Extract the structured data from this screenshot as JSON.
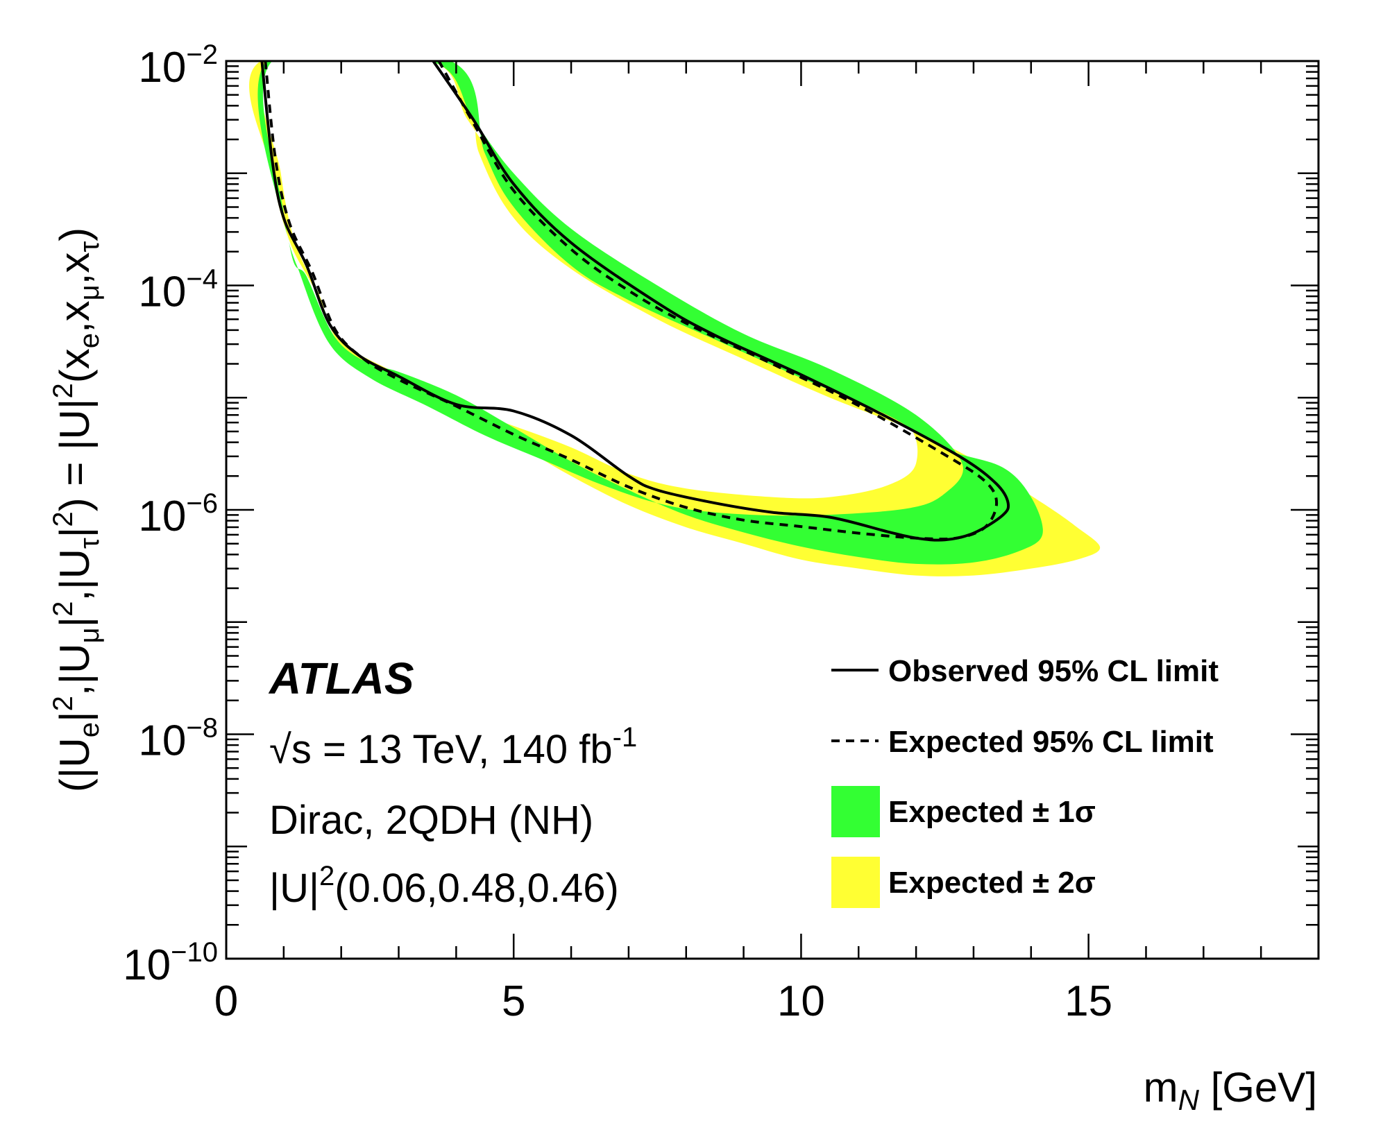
{
  "chart_data": {
    "type": "area",
    "experiment": "ATLAS",
    "energy_line": "√s = 13 TeV, 140 fb-1",
    "info_lines": [
      "Dirac, 2QDH (NH)"
    ],
    "coupling_label": "|U|2(0.06,0.48,0.46)",
    "xlabel": "m_N [GeV]",
    "ylabel": "(|U_e|^2,|U_μ|^2,|U_τ|^2) = |U|^2(x_e,x_μ,x_τ)",
    "xlim": [
      0,
      19
    ],
    "ylim": [
      1e-10,
      0.01
    ],
    "yscale": "log",
    "x_ticks": [
      0,
      5,
      10,
      15
    ],
    "x_tick_labels": [
      "0",
      "5",
      "10",
      "15"
    ],
    "y_ticks": [
      -10,
      -8,
      -6,
      -4,
      -2
    ],
    "y_tick_labels": [
      "10−10",
      "10−8",
      "10−6",
      "10−4",
      "10−2"
    ],
    "legend": {
      "placement": "bottom-right",
      "entries": [
        {
          "label": "Observed 95% CL limit",
          "style": "solid-line"
        },
        {
          "label": "Expected 95% CL limit",
          "style": "dashed-line"
        },
        {
          "label": "Expected ± 1σ",
          "style": "fill",
          "color": "#33ff33"
        },
        {
          "label": "Expected ± 2σ",
          "style": "fill",
          "color": "#ffff33"
        }
      ]
    },
    "colors": {
      "band_1sigma": "#33ff33",
      "band_2sigma": "#ffff33",
      "line": "#000000"
    },
    "band_2sigma": {
      "lower_edge": [
        [
          0.6,
          0.01
        ],
        [
          0.8,
          0.001
        ],
        [
          1.1,
          0.00025
        ],
        [
          1.5,
          0.0001
        ],
        [
          2.0,
          3.2e-05
        ],
        [
          3.0,
          1.6e-05
        ],
        [
          4.0,
          8e-06
        ],
        [
          5.0,
          4e-06
        ],
        [
          6.0,
          2e-06
        ],
        [
          7.0,
          1.1e-06
        ],
        [
          8.0,
          7e-07
        ],
        [
          9.0,
          5e-07
        ],
        [
          10.0,
          3.6e-07
        ],
        [
          11.0,
          3e-07
        ],
        [
          12.0,
          2.6e-07
        ],
        [
          13.0,
          2.6e-07
        ],
        [
          14.0,
          3e-07
        ],
        [
          14.8,
          3.6e-07
        ],
        [
          15.2,
          4.6e-07
        ]
      ],
      "upper_edge": [
        [
          15.2,
          4.6e-07
        ],
        [
          14.8,
          7e-07
        ],
        [
          14.2,
          1.15e-06
        ],
        [
          13.0,
          2.8e-06
        ],
        [
          12.0,
          5e-06
        ],
        [
          10.5,
          1e-05
        ],
        [
          9.0,
          2.2e-05
        ],
        [
          7.5,
          5e-05
        ],
        [
          6.0,
          0.00014
        ],
        [
          5.0,
          0.0004
        ],
        [
          4.4,
          0.0015
        ],
        [
          3.9,
          0.01
        ]
      ],
      "hole_edge": [
        [
          12.0,
          2.6e-06
        ],
        [
          11.5,
          1.65e-06
        ],
        [
          10.5,
          1.3e-06
        ],
        [
          9.5,
          1.3e-06
        ],
        [
          8.0,
          1.55e-06
        ],
        [
          7.0,
          2.1e-06
        ],
        [
          6.0,
          3.6e-06
        ],
        [
          5.0,
          5.6e-06
        ],
        [
          4.0,
          8.4e-06
        ],
        [
          3.0,
          1.45e-05
        ],
        [
          2.0,
          2.9e-05
        ],
        [
          1.6,
          8.7e-05
        ],
        [
          1.2,
          0.00024
        ],
        [
          0.95,
          0.001
        ],
        [
          0.75,
          0.01
        ],
        [
          3.55,
          0.01
        ],
        [
          4.2,
          0.003
        ],
        [
          5.0,
          0.0008
        ],
        [
          6.0,
          0.00025
        ],
        [
          7.5,
          8e-05
        ],
        [
          9.0,
          3.2e-05
        ],
        [
          10.5,
          1.5e-05
        ],
        [
          11.8,
          6.3e-06
        ]
      ]
    },
    "band_1sigma": {
      "outer_lower": [
        [
          0.7,
          0.01
        ],
        [
          1.1,
          0.00023
        ],
        [
          1.4,
          0.00012
        ],
        [
          1.9,
          3.4e-05
        ],
        [
          2.5,
          2e-05
        ],
        [
          3.0,
          1.7e-05
        ],
        [
          4.0,
          1.05e-05
        ],
        [
          5.0,
          5.4e-06
        ],
        [
          6.0,
          2.7e-06
        ],
        [
          7.0,
          1.5e-06
        ],
        [
          8.0,
          9e-07
        ],
        [
          9.0,
          6.3e-07
        ],
        [
          10.0,
          4.7e-07
        ],
        [
          11.0,
          3.8e-07
        ],
        [
          12.0,
          3.3e-07
        ],
        [
          13.0,
          3.4e-07
        ],
        [
          13.8,
          4.3e-07
        ],
        [
          14.2,
          6.1e-07
        ]
      ],
      "outer_upper": [
        [
          14.2,
          6.1e-07
        ],
        [
          14.0,
          1.3e-06
        ],
        [
          13.5,
          2.4e-06
        ],
        [
          12.5,
          3.5e-06
        ],
        [
          11.5,
          7e-06
        ],
        [
          10.0,
          1.5e-05
        ],
        [
          8.5,
          3.3e-05
        ],
        [
          7.0,
          7.4e-05
        ],
        [
          6.0,
          0.00015
        ],
        [
          5.0,
          0.0005
        ],
        [
          4.5,
          0.0015
        ],
        [
          3.9,
          0.01
        ]
      ],
      "inner": [
        [
          12.8,
          2.6e-06
        ],
        [
          12.5,
          1.4e-06
        ],
        [
          11.8,
          1.02e-06
        ],
        [
          10.0,
          8.9e-07
        ],
        [
          8.5,
          9.5e-07
        ],
        [
          7.5,
          1.15e-06
        ],
        [
          6.5,
          1.7e-06
        ],
        [
          5.5,
          2.8e-06
        ],
        [
          4.5,
          4.6e-06
        ],
        [
          3.5,
          8.4e-06
        ],
        [
          2.5,
          1.5e-05
        ],
        [
          1.8,
          3e-05
        ],
        [
          1.3,
          0.00012
        ],
        [
          1.0,
          0.00044
        ],
        [
          0.8,
          0.01
        ],
        [
          3.55,
          0.01
        ],
        [
          4.3,
          0.003
        ],
        [
          5.0,
          0.001
        ],
        [
          6.0,
          0.00032
        ],
        [
          7.5,
          0.0001
        ],
        [
          9.0,
          3.7e-05
        ],
        [
          10.5,
          1.8e-05
        ],
        [
          12.0,
          7e-06
        ]
      ]
    },
    "series": [
      {
        "name": "Observed 95% CL limit",
        "style": "solid",
        "points": [
          [
            0.62,
            0.01
          ],
          [
            0.8,
            0.0013
          ],
          [
            1.0,
            0.0004
          ],
          [
            1.4,
            0.00015
          ],
          [
            1.8,
            4.5e-05
          ],
          [
            2.3,
            2.4e-05
          ],
          [
            3.0,
            1.55e-05
          ],
          [
            4.0,
            8.7e-06
          ],
          [
            5.0,
            7.6e-06
          ],
          [
            6.0,
            4.6e-06
          ],
          [
            7.0,
            2e-06
          ],
          [
            7.5,
            1.5e-06
          ],
          [
            8.5,
            1.15e-06
          ],
          [
            9.5,
            9.5e-07
          ],
          [
            10.5,
            8.6e-07
          ],
          [
            11.5,
            6.4e-07
          ],
          [
            12.0,
            5.6e-07
          ],
          [
            12.5,
            5.4e-07
          ],
          [
            13.0,
            6.2e-07
          ],
          [
            13.5,
            8.9e-07
          ],
          [
            13.6,
            1.15e-06
          ],
          [
            13.4,
            1.7e-06
          ],
          [
            12.8,
            2.9e-06
          ],
          [
            11.5,
            6.7e-06
          ],
          [
            10.0,
            1.6e-05
          ],
          [
            8.5,
            3.6e-05
          ],
          [
            7.5,
            7e-05
          ],
          [
            6.0,
            0.00024
          ],
          [
            5.0,
            0.0008
          ],
          [
            4.3,
            0.003
          ],
          [
            3.6,
            0.01
          ]
        ]
      },
      {
        "name": "Expected 95% CL limit",
        "style": "dashed",
        "points": [
          [
            0.68,
            0.01
          ],
          [
            0.86,
            0.0013
          ],
          [
            1.1,
            0.00036
          ],
          [
            1.5,
            0.00013
          ],
          [
            1.9,
            4e-05
          ],
          [
            2.4,
            2.2e-05
          ],
          [
            3.0,
            1.45e-05
          ],
          [
            4.0,
            8.4e-06
          ],
          [
            5.0,
            4.7e-06
          ],
          [
            6.0,
            2.8e-06
          ],
          [
            7.0,
            1.6e-06
          ],
          [
            8.0,
            1.05e-06
          ],
          [
            9.0,
            8.1e-07
          ],
          [
            10.0,
            7.1e-07
          ],
          [
            11.0,
            6.2e-07
          ],
          [
            12.0,
            5.6e-07
          ],
          [
            12.7,
            5.6e-07
          ],
          [
            13.2,
            7e-07
          ],
          [
            13.4,
            1.15e-06
          ],
          [
            13.2,
            1.8e-06
          ],
          [
            12.5,
            3.1e-06
          ],
          [
            11.0,
            8.5e-06
          ],
          [
            9.5,
            2e-05
          ],
          [
            8.0,
            4.6e-05
          ],
          [
            7.0,
            9e-05
          ],
          [
            6.0,
            0.00021
          ],
          [
            5.0,
            0.0007
          ],
          [
            4.3,
            0.0028
          ],
          [
            3.7,
            0.01
          ]
        ]
      }
    ]
  }
}
